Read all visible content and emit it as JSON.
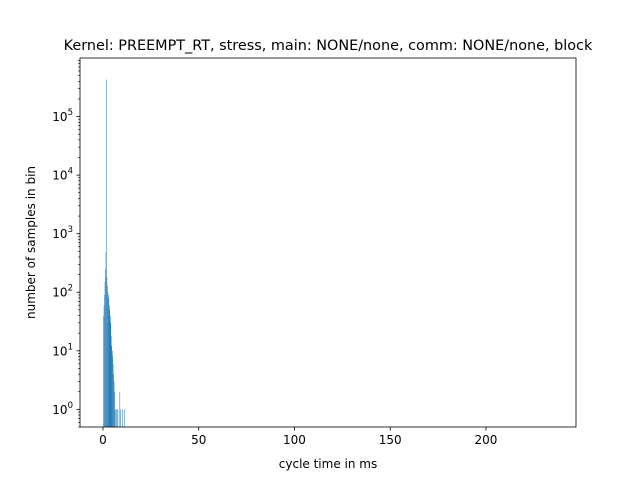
{
  "chart_data": {
    "type": "bar",
    "title": "Kernel: PREEMPT_RT, stress, main: NONE/none, comm: NONE/none, block",
    "xlabel": "cycle time in ms",
    "ylabel": "number of samples in bin",
    "xlim": [
      -12,
      247
    ],
    "ylim": [
      0.5,
      1000000
    ],
    "yscale": "log",
    "grid": false,
    "bar_color": "#1f77b4",
    "x_ticks": [
      0,
      50,
      100,
      150,
      200
    ],
    "x_tick_labels": [
      "0",
      "50",
      "100",
      "150",
      "200"
    ],
    "y_ticks": [
      1,
      10,
      100,
      1000,
      10000,
      100000
    ],
    "y_tick_labels": [
      "10^0",
      "10^1",
      "10^2",
      "10^3",
      "10^4",
      "10^5"
    ],
    "bins": [
      {
        "x": 0.3,
        "count": 40
      },
      {
        "x": 0.55,
        "count": 60
      },
      {
        "x": 0.8,
        "count": 90
      },
      {
        "x": 1.05,
        "count": 150
      },
      {
        "x": 1.3,
        "count": 250
      },
      {
        "x": 1.55,
        "count": 480
      },
      {
        "x": 1.8,
        "count": 430000
      },
      {
        "x": 2.05,
        "count": 180
      },
      {
        "x": 2.3,
        "count": 130
      },
      {
        "x": 2.55,
        "count": 100
      },
      {
        "x": 2.8,
        "count": 90
      },
      {
        "x": 3.05,
        "count": 80
      },
      {
        "x": 3.3,
        "count": 60
      },
      {
        "x": 3.55,
        "count": 50
      },
      {
        "x": 3.8,
        "count": 40
      },
      {
        "x": 4.05,
        "count": 30
      },
      {
        "x": 4.3,
        "count": 18
      },
      {
        "x": 4.55,
        "count": 12
      },
      {
        "x": 4.8,
        "count": 8
      },
      {
        "x": 5.05,
        "count": 10
      },
      {
        "x": 5.3,
        "count": 6
      },
      {
        "x": 5.55,
        "count": 4
      },
      {
        "x": 5.8,
        "count": 3
      },
      {
        "x": 6.05,
        "count": 2
      },
      {
        "x": 6.3,
        "count": 1
      },
      {
        "x": 6.8,
        "count": 1
      },
      {
        "x": 7.3,
        "count": 1
      },
      {
        "x": 7.8,
        "count": 1
      },
      {
        "x": 8.8,
        "count": 2
      },
      {
        "x": 9.3,
        "count": 1
      },
      {
        "x": 10.3,
        "count": 1
      },
      {
        "x": 11.3,
        "count": 1
      }
    ]
  }
}
